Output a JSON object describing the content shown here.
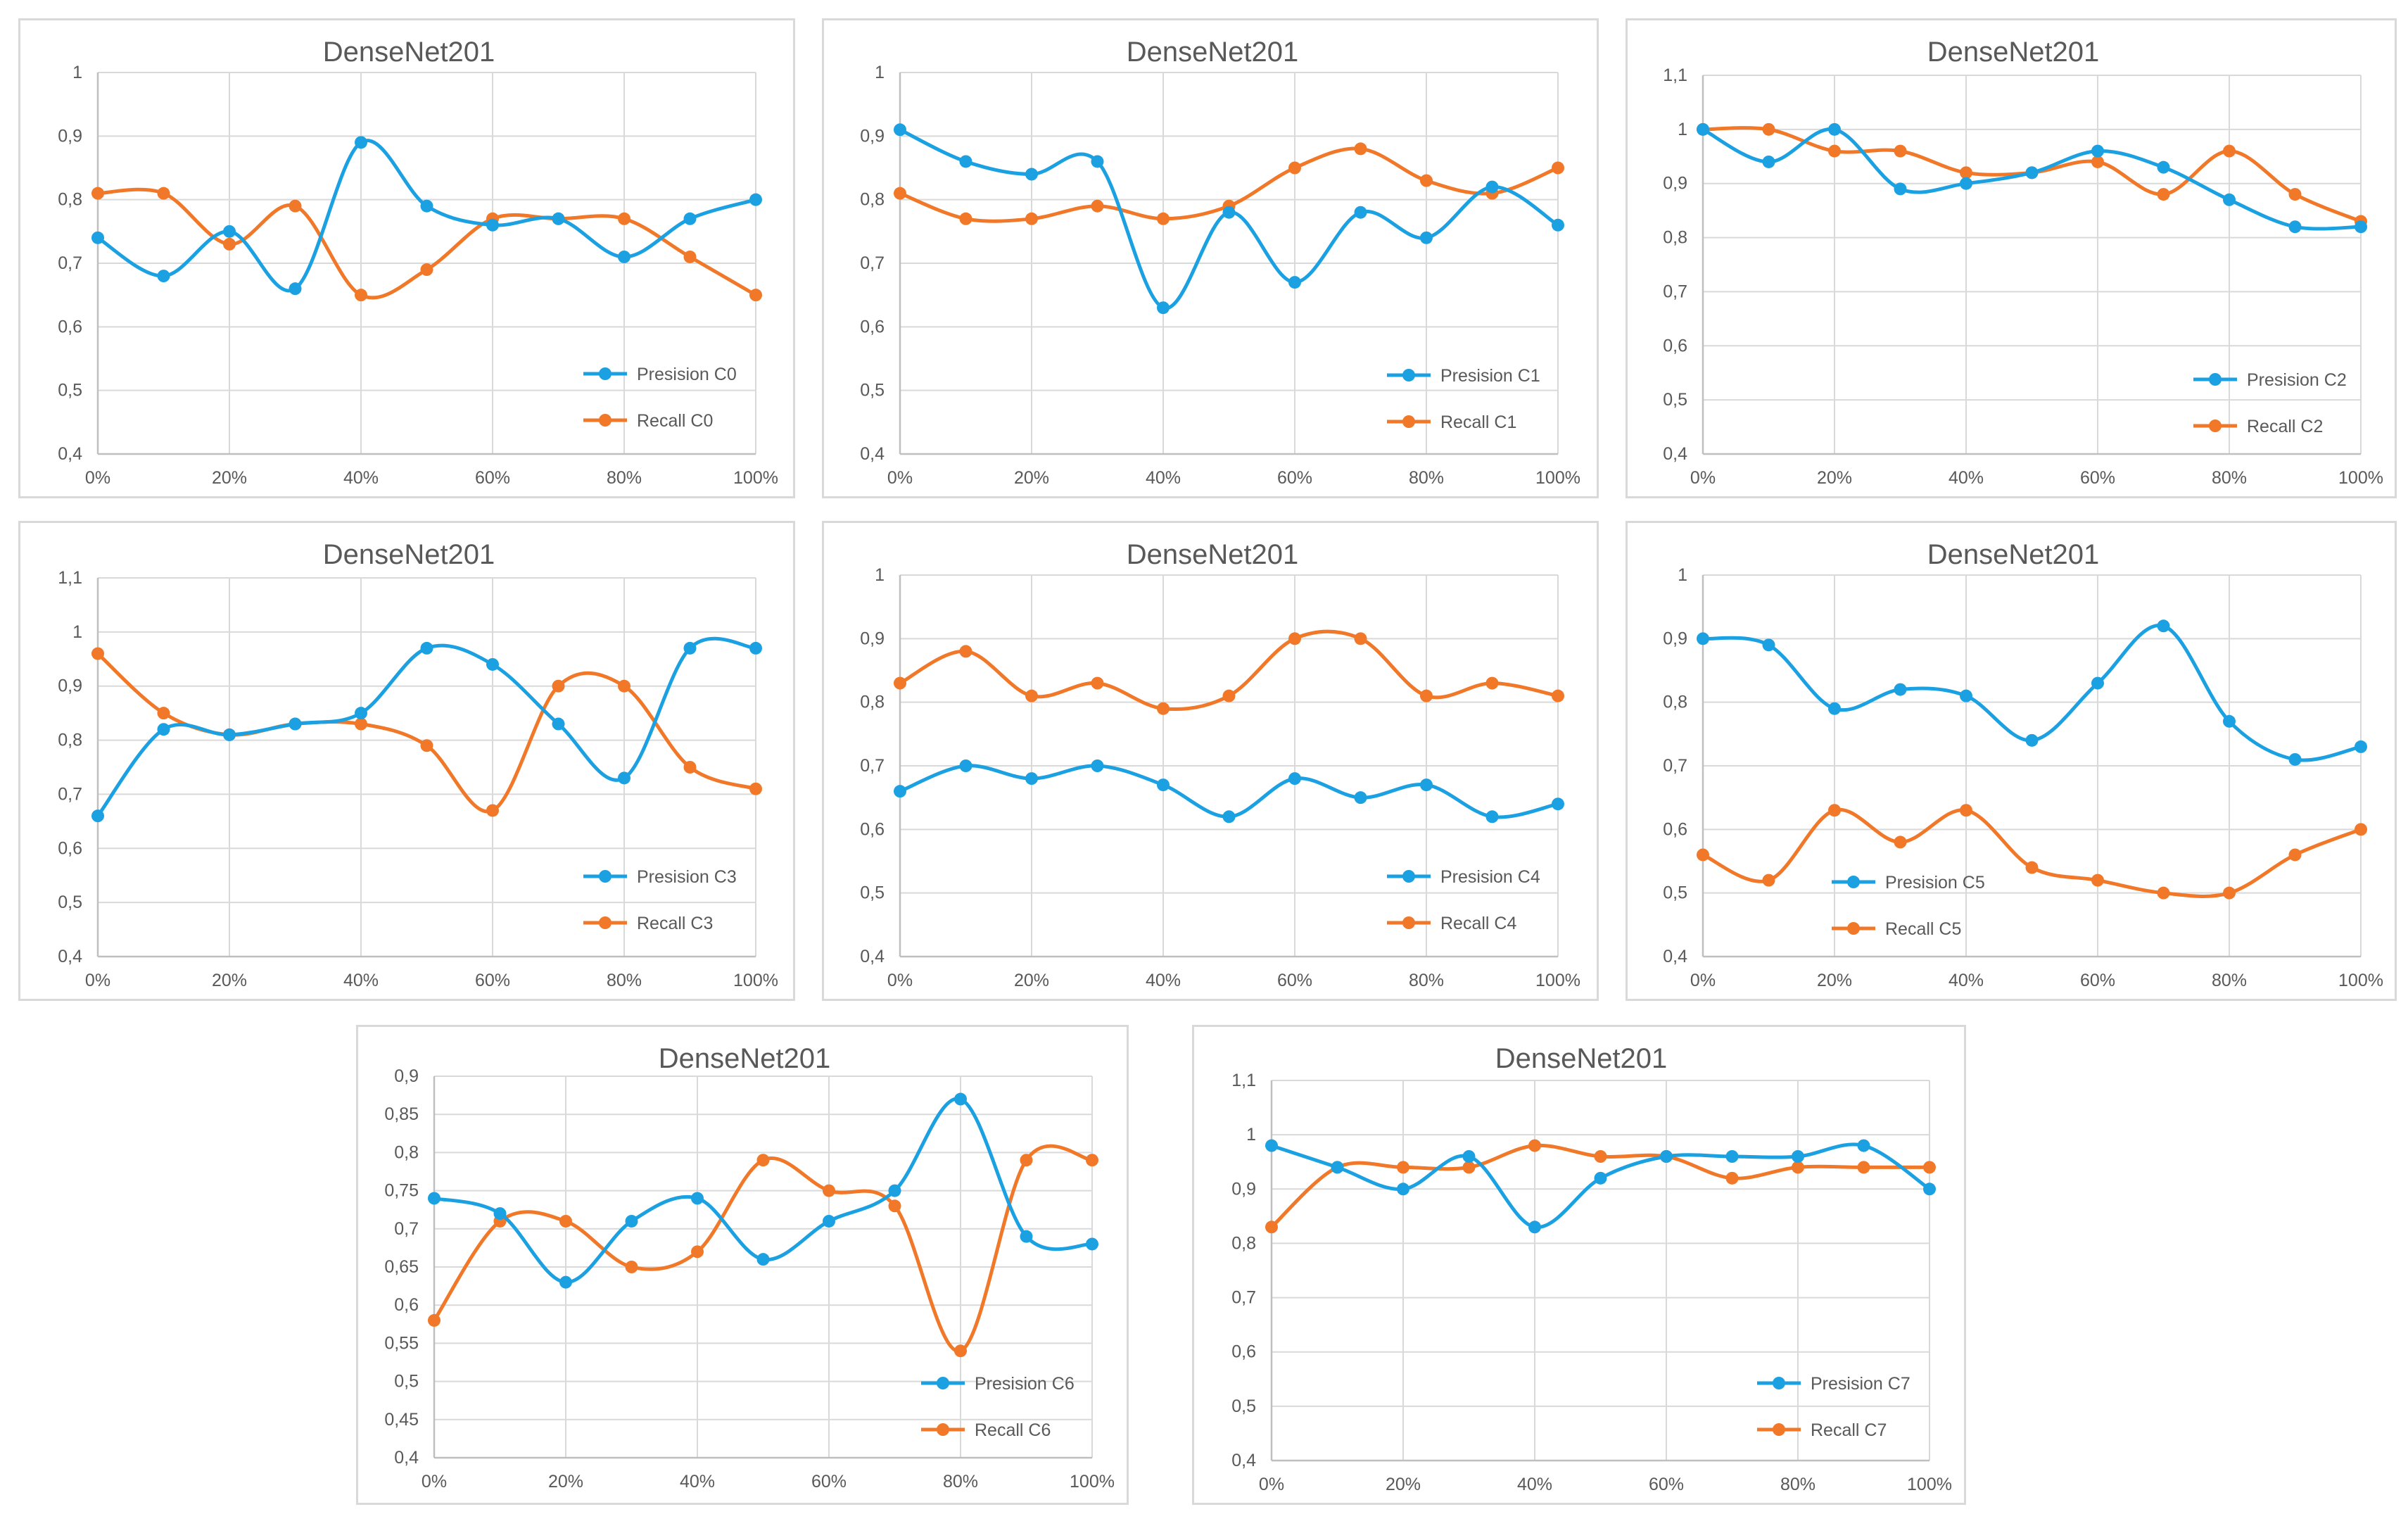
{
  "colors": {
    "precision": "#1ba1e2",
    "recall": "#f07828",
    "text": "#595959",
    "grid": "#d9d9d9"
  },
  "chart_data": [
    {
      "type": "line",
      "title": "DenseNet201",
      "x": [
        "0%",
        "10%",
        "20%",
        "30%",
        "40%",
        "50%",
        "60%",
        "70%",
        "80%",
        "90%",
        "100%"
      ],
      "xticks": [
        "0%",
        "20%",
        "40%",
        "60%",
        "80%",
        "100%"
      ],
      "ylim": [
        0.4,
        1.0
      ],
      "yticks": [
        "0,4",
        "0,5",
        "0,6",
        "0,7",
        "0,8",
        "0,9",
        "1"
      ],
      "series": [
        {
          "name": "Presision C0",
          "values": [
            0.74,
            0.68,
            0.75,
            0.66,
            0.89,
            0.79,
            0.76,
            0.77,
            0.71,
            0.77,
            0.8
          ]
        },
        {
          "name": "Recall C0",
          "values": [
            0.81,
            0.81,
            0.73,
            0.79,
            0.65,
            0.69,
            0.77,
            0.77,
            0.77,
            0.71,
            0.65
          ]
        }
      ]
    },
    {
      "type": "line",
      "title": "DenseNet201",
      "x": [
        "0%",
        "10%",
        "20%",
        "30%",
        "40%",
        "50%",
        "60%",
        "70%",
        "80%",
        "90%",
        "100%"
      ],
      "xticks": [
        "0%",
        "20%",
        "40%",
        "60%",
        "80%",
        "100%"
      ],
      "ylim": [
        0.4,
        1.0
      ],
      "yticks": [
        "0,4",
        "0,5",
        "0,6",
        "0,7",
        "0,8",
        "0,9",
        "1"
      ],
      "series": [
        {
          "name": "Presision C1",
          "values": [
            0.91,
            0.86,
            0.84,
            0.86,
            0.63,
            0.78,
            0.67,
            0.78,
            0.74,
            0.82,
            0.76
          ]
        },
        {
          "name": "Recall C1",
          "values": [
            0.81,
            0.77,
            0.77,
            0.79,
            0.77,
            0.79,
            0.85,
            0.88,
            0.83,
            0.81,
            0.85
          ]
        }
      ]
    },
    {
      "type": "line",
      "title": "DenseNet201",
      "x": [
        "0%",
        "10%",
        "20%",
        "30%",
        "40%",
        "50%",
        "60%",
        "70%",
        "80%",
        "90%",
        "100%"
      ],
      "xticks": [
        "0%",
        "20%",
        "40%",
        "60%",
        "80%",
        "100%"
      ],
      "ylim": [
        0.4,
        1.1
      ],
      "yticks": [
        "0,4",
        "0,5",
        "0,6",
        "0,7",
        "0,8",
        "0,9",
        "1",
        "1,1"
      ],
      "series": [
        {
          "name": "Presision C2",
          "values": [
            1.0,
            0.94,
            1.0,
            0.89,
            0.9,
            0.92,
            0.96,
            0.93,
            0.87,
            0.82,
            0.82
          ]
        },
        {
          "name": "Recall C2",
          "values": [
            1.0,
            1.0,
            0.96,
            0.96,
            0.92,
            0.92,
            0.94,
            0.88,
            0.96,
            0.88,
            0.83
          ]
        }
      ]
    },
    {
      "type": "line",
      "title": "DenseNet201",
      "x": [
        "0%",
        "10%",
        "20%",
        "30%",
        "40%",
        "50%",
        "60%",
        "70%",
        "80%",
        "90%",
        "100%"
      ],
      "xticks": [
        "0%",
        "20%",
        "40%",
        "60%",
        "80%",
        "100%"
      ],
      "ylim": [
        0.4,
        1.1
      ],
      "yticks": [
        "0,4",
        "0,5",
        "0,6",
        "0,7",
        "0,8",
        "0,9",
        "1",
        "1,1"
      ],
      "series": [
        {
          "name": "Presision C3",
          "values": [
            0.66,
            0.82,
            0.81,
            0.83,
            0.85,
            0.97,
            0.94,
            0.83,
            0.73,
            0.97,
            0.97
          ]
        },
        {
          "name": "Recall C3",
          "values": [
            0.96,
            0.85,
            0.81,
            0.83,
            0.83,
            0.79,
            0.67,
            0.9,
            0.9,
            0.75,
            0.71
          ]
        }
      ]
    },
    {
      "type": "line",
      "title": "DenseNet201",
      "x": [
        "0%",
        "10%",
        "20%",
        "30%",
        "40%",
        "50%",
        "60%",
        "70%",
        "80%",
        "90%",
        "100%"
      ],
      "xticks": [
        "0%",
        "20%",
        "40%",
        "60%",
        "80%",
        "100%"
      ],
      "ylim": [
        0.4,
        1.0
      ],
      "yticks": [
        "0,4",
        "0,5",
        "0,6",
        "0,7",
        "0,8",
        "0,9",
        "1"
      ],
      "series": [
        {
          "name": "Presision C4",
          "values": [
            0.66,
            0.7,
            0.68,
            0.7,
            0.67,
            0.62,
            0.68,
            0.65,
            0.67,
            0.62,
            0.64
          ]
        },
        {
          "name": "Recall C4",
          "values": [
            0.83,
            0.88,
            0.81,
            0.83,
            0.79,
            0.81,
            0.9,
            0.9,
            0.81,
            0.83,
            0.81
          ]
        }
      ]
    },
    {
      "type": "line",
      "title": "DenseNet201",
      "x": [
        "0%",
        "10%",
        "20%",
        "30%",
        "40%",
        "50%",
        "60%",
        "70%",
        "80%",
        "90%",
        "100%"
      ],
      "xticks": [
        "0%",
        "20%",
        "40%",
        "60%",
        "80%",
        "100%"
      ],
      "ylim": [
        0.4,
        1.0
      ],
      "yticks": [
        "0,4",
        "0,5",
        "0,6",
        "0,7",
        "0,8",
        "0,9",
        "1"
      ],
      "series": [
        {
          "name": "Presision C5",
          "values": [
            0.9,
            0.89,
            0.79,
            0.82,
            0.81,
            0.74,
            0.83,
            0.92,
            0.77,
            0.71,
            0.73
          ]
        },
        {
          "name": "Recall C5",
          "values": [
            0.56,
            0.52,
            0.63,
            0.58,
            0.63,
            0.54,
            0.52,
            0.5,
            0.5,
            0.56,
            0.6
          ]
        }
      ]
    },
    {
      "type": "line",
      "title": "DenseNet201",
      "x": [
        "0%",
        "10%",
        "20%",
        "30%",
        "40%",
        "50%",
        "60%",
        "70%",
        "80%",
        "90%",
        "100%"
      ],
      "xticks": [
        "0%",
        "20%",
        "40%",
        "60%",
        "80%",
        "100%"
      ],
      "ylim": [
        0.4,
        0.9
      ],
      "yticks": [
        "0,4",
        "0,45",
        "0,5",
        "0,55",
        "0,6",
        "0,65",
        "0,7",
        "0,75",
        "0,8",
        "0,85",
        "0,9"
      ],
      "series": [
        {
          "name": "Presision C6",
          "values": [
            0.74,
            0.72,
            0.63,
            0.71,
            0.74,
            0.66,
            0.71,
            0.75,
            0.87,
            0.69,
            0.68
          ]
        },
        {
          "name": "Recall C6",
          "values": [
            0.58,
            0.71,
            0.71,
            0.65,
            0.67,
            0.79,
            0.75,
            0.73,
            0.54,
            0.79,
            0.79
          ]
        }
      ]
    },
    {
      "type": "line",
      "title": "DenseNet201",
      "x": [
        "0%",
        "10%",
        "20%",
        "30%",
        "40%",
        "50%",
        "60%",
        "70%",
        "80%",
        "90%",
        "100%"
      ],
      "xticks": [
        "0%",
        "20%",
        "40%",
        "60%",
        "80%",
        "100%"
      ],
      "ylim": [
        0.4,
        1.1
      ],
      "yticks": [
        "0,4",
        "0,5",
        "0,6",
        "0,7",
        "0,8",
        "0,9",
        "1",
        "1,1"
      ],
      "series": [
        {
          "name": "Presision C7",
          "values": [
            0.98,
            0.94,
            0.9,
            0.96,
            0.83,
            0.92,
            0.96,
            0.96,
            0.96,
            0.98,
            0.9
          ]
        },
        {
          "name": "Recall C7",
          "values": [
            0.83,
            0.94,
            0.94,
            0.94,
            0.98,
            0.96,
            0.96,
            0.92,
            0.94,
            0.94,
            0.94
          ]
        }
      ]
    }
  ]
}
